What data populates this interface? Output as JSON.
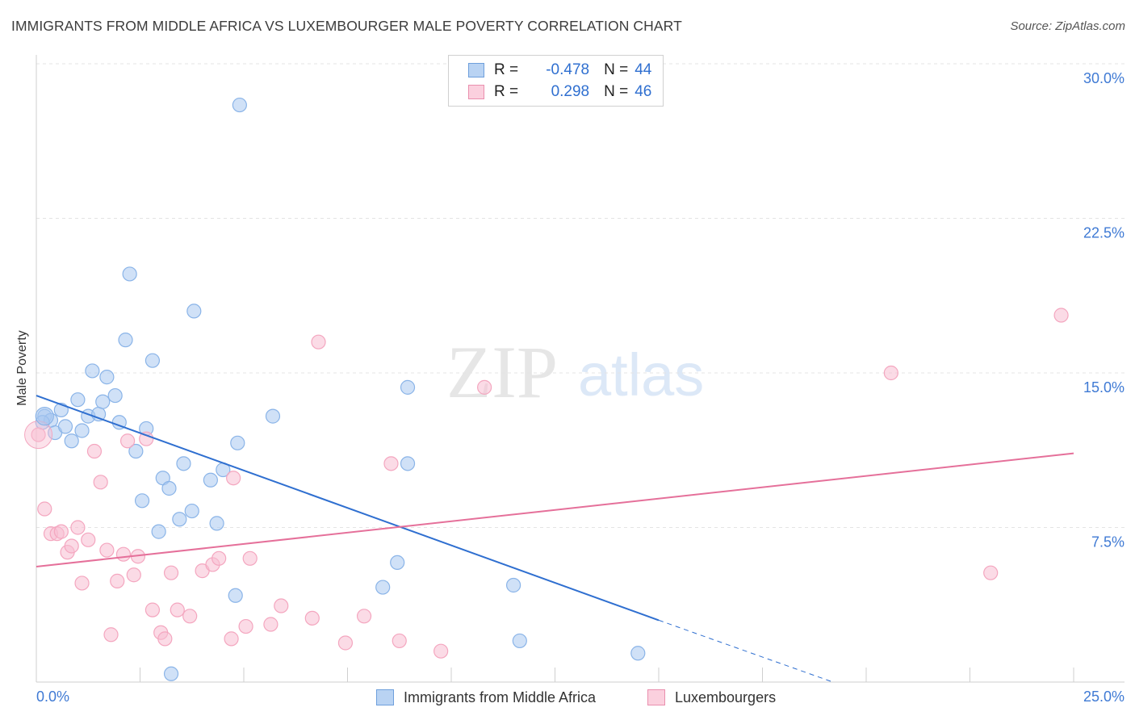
{
  "title": "IMMIGRANTS FROM MIDDLE AFRICA VS LUXEMBOURGER MALE POVERTY CORRELATION CHART",
  "source": "Source: ZipAtlas.com",
  "watermark": {
    "zip": "ZIP",
    "atlas": "atlas"
  },
  "legend": {
    "rows": [
      {
        "r_label": "R =",
        "r_value": "-0.478",
        "n_label": "N =",
        "n_value": "44"
      },
      {
        "r_label": "R =",
        "r_value": "0.298",
        "n_label": "N =",
        "n_value": "46"
      }
    ]
  },
  "chart_data": {
    "type": "scatter",
    "title": "IMMIGRANTS FROM MIDDLE AFRICA VS LUXEMBOURGER MALE POVERTY CORRELATION CHART",
    "xlabel": "",
    "ylabel": "Male Poverty",
    "xlim": [
      0,
      25
    ],
    "ylim": [
      0,
      30
    ],
    "x_tick_labels": [
      "0.0%",
      "25.0%"
    ],
    "y_ticks": [
      7.5,
      15.0,
      22.5,
      30.0
    ],
    "y_tick_labels": [
      "7.5%",
      "15.0%",
      "22.5%",
      "30.0%"
    ],
    "grid": true,
    "series": [
      {
        "name": "Immigrants from Middle Africa",
        "color": "#8ab4e8",
        "line_color": "#2f6fd0",
        "r": -0.478,
        "n": 44,
        "trend": {
          "x0": 0,
          "y0": 13.9,
          "x1": 15.0,
          "y1": 3.0,
          "dash_to_x": 19.2,
          "dash_to_y": 0
        },
        "points": [
          [
            0.2,
            12.9
          ],
          [
            0.35,
            12.7
          ],
          [
            0.45,
            12.1
          ],
          [
            0.6,
            13.2
          ],
          [
            0.7,
            12.4
          ],
          [
            0.85,
            11.7
          ],
          [
            1.0,
            13.7
          ],
          [
            1.1,
            12.2
          ],
          [
            1.25,
            12.9
          ],
          [
            1.35,
            15.1
          ],
          [
            1.5,
            13.0
          ],
          [
            1.6,
            13.6
          ],
          [
            1.7,
            14.8
          ],
          [
            1.9,
            13.9
          ],
          [
            2.0,
            12.6
          ],
          [
            2.15,
            16.6
          ],
          [
            2.25,
            19.8
          ],
          [
            2.4,
            11.2
          ],
          [
            2.55,
            8.8
          ],
          [
            2.65,
            12.3
          ],
          [
            2.8,
            15.6
          ],
          [
            2.95,
            7.3
          ],
          [
            3.05,
            9.9
          ],
          [
            3.2,
            9.4
          ],
          [
            3.25,
            0.4
          ],
          [
            3.45,
            7.9
          ],
          [
            3.55,
            10.6
          ],
          [
            3.75,
            8.3
          ],
          [
            3.8,
            18.0
          ],
          [
            4.2,
            9.8
          ],
          [
            4.35,
            7.7
          ],
          [
            4.5,
            10.3
          ],
          [
            4.8,
            4.2
          ],
          [
            4.85,
            11.6
          ],
          [
            4.9,
            28.0
          ],
          [
            5.7,
            12.9
          ],
          [
            8.35,
            4.6
          ],
          [
            8.7,
            5.8
          ],
          [
            8.95,
            14.3
          ],
          [
            8.95,
            10.6
          ],
          [
            11.5,
            4.7
          ],
          [
            11.65,
            2.0
          ],
          [
            14.5,
            1.4
          ],
          [
            0.15,
            12.6
          ]
        ]
      },
      {
        "name": "Luxembourgers",
        "color": "#f4a6bf",
        "line_color": "#e5709a",
        "r": 0.298,
        "n": 46,
        "trend": {
          "x0": 0,
          "y0": 5.6,
          "x1": 25,
          "y1": 11.1
        },
        "points": [
          [
            0.05,
            12.0
          ],
          [
            0.2,
            8.4
          ],
          [
            0.35,
            7.2
          ],
          [
            0.5,
            7.2
          ],
          [
            0.6,
            7.3
          ],
          [
            0.75,
            6.3
          ],
          [
            0.85,
            6.6
          ],
          [
            1.0,
            7.5
          ],
          [
            1.1,
            4.8
          ],
          [
            1.25,
            6.9
          ],
          [
            1.4,
            11.2
          ],
          [
            1.55,
            9.7
          ],
          [
            1.7,
            6.4
          ],
          [
            1.8,
            2.3
          ],
          [
            1.95,
            4.9
          ],
          [
            2.1,
            6.2
          ],
          [
            2.2,
            11.7
          ],
          [
            2.35,
            5.2
          ],
          [
            2.45,
            6.1
          ],
          [
            2.65,
            11.8
          ],
          [
            2.8,
            3.5
          ],
          [
            3.0,
            2.4
          ],
          [
            3.1,
            2.1
          ],
          [
            3.25,
            5.3
          ],
          [
            3.4,
            3.5
          ],
          [
            3.7,
            3.2
          ],
          [
            4.0,
            5.4
          ],
          [
            4.25,
            5.7
          ],
          [
            4.4,
            6.0
          ],
          [
            4.7,
            2.1
          ],
          [
            4.75,
            9.9
          ],
          [
            5.05,
            2.7
          ],
          [
            5.15,
            6.0
          ],
          [
            5.65,
            2.8
          ],
          [
            5.9,
            3.7
          ],
          [
            6.65,
            3.1
          ],
          [
            6.8,
            16.5
          ],
          [
            7.45,
            1.9
          ],
          [
            7.9,
            3.2
          ],
          [
            8.55,
            10.6
          ],
          [
            8.75,
            2.0
          ],
          [
            9.75,
            1.5
          ],
          [
            10.8,
            14.3
          ],
          [
            20.6,
            15.0
          ],
          [
            23.0,
            5.3
          ],
          [
            24.7,
            17.8
          ]
        ]
      }
    ]
  }
}
